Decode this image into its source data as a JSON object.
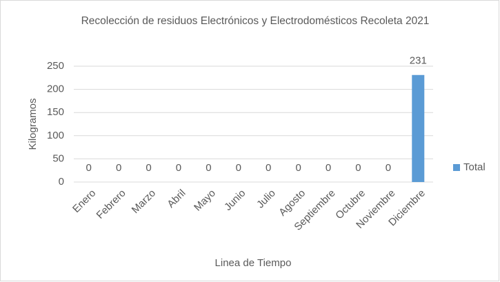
{
  "chart_data": {
    "type": "bar",
    "title": "Recolección de residuos Electrónicos y Electrodomésticos Recoleta 2021",
    "x_label": "Linea de Tiempo",
    "y_label": "Kilogramos",
    "categories": [
      "Enero",
      "Febrero",
      "Marzo",
      "Abril",
      "Mayo",
      "Junio",
      "Julio",
      "Agosto",
      "Septiembre",
      "Octubre",
      "Noviembre",
      "Diciembre"
    ],
    "series": [
      {
        "name": "Total",
        "color": "#5b9bd5",
        "values": [
          0,
          0,
          0,
          0,
          0,
          0,
          0,
          0,
          0,
          0,
          0,
          231
        ]
      }
    ],
    "ylim": [
      0,
      250
    ],
    "yticks": [
      0,
      50,
      100,
      150,
      200,
      250
    ],
    "grid": true,
    "legend": "right"
  }
}
